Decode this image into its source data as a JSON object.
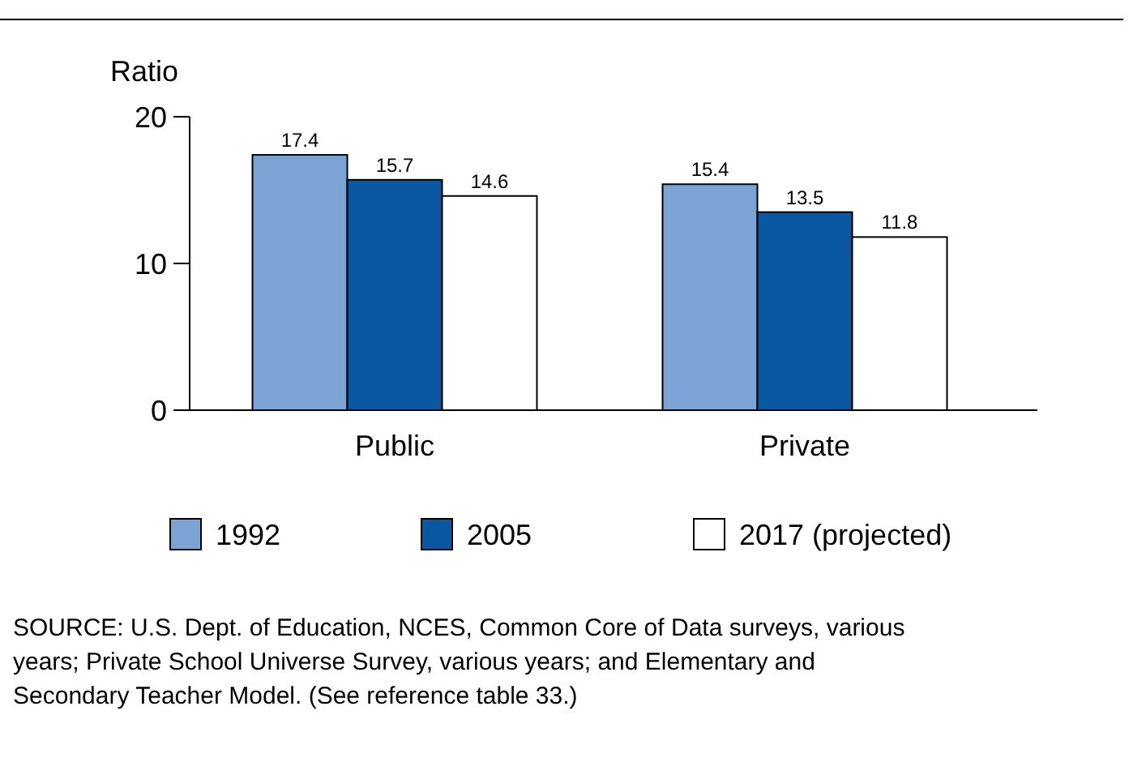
{
  "chart_data": {
    "type": "bar",
    "ylabel": "Ratio",
    "categories": [
      "Public",
      "Private"
    ],
    "series": [
      {
        "name": "1992",
        "color": "#7ba4d4",
        "values": [
          17.4,
          15.4
        ]
      },
      {
        "name": "2005",
        "color": "#0a57a3",
        "values": [
          15.7,
          13.5
        ]
      },
      {
        "name": "2017 (projected)",
        "color": "#ffffff",
        "values": [
          14.6,
          11.8
        ]
      }
    ],
    "ylim": [
      0,
      20
    ],
    "yticks": [
      0,
      10,
      20
    ],
    "data_labels": true,
    "legend": "bottom",
    "grid": false,
    "annotations": [
      "SOURCE: U.S. Dept. of Education, NCES, Common Core of Data surveys, various years; Private School Universe Survey, various years; and Elementary and Secondary Teacher Model. (See reference table 33.)"
    ]
  }
}
